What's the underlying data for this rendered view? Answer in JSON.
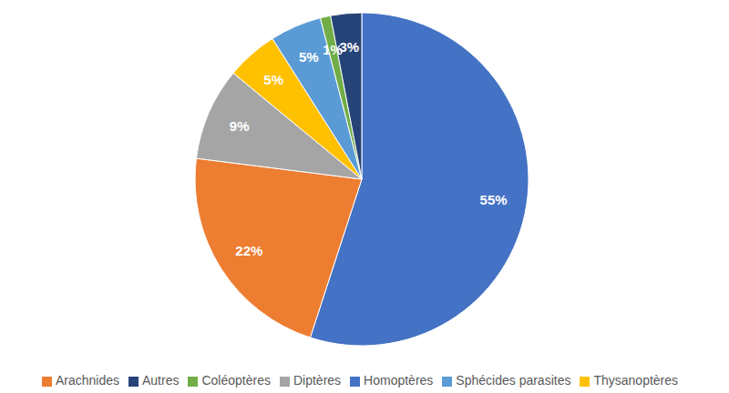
{
  "chart_data": {
    "type": "pie",
    "categories": [
      "Homoptères",
      "Arachnides",
      "Diptères",
      "Thysanoptères",
      "Sphécides parasites",
      "Coléoptères",
      "Autres"
    ],
    "values": [
      55,
      22,
      9,
      5,
      5,
      1,
      3
    ],
    "value_labels": [
      "55%",
      "22%",
      "9%",
      "5%",
      "5%",
      "1%",
      "3%"
    ],
    "colors": [
      "#4472c4",
      "#ed7d31",
      "#a5a5a5",
      "#ffc000",
      "#5b9bd5",
      "#70ad47",
      "#264478"
    ],
    "data_labels": true,
    "legend": "bottom"
  }
}
